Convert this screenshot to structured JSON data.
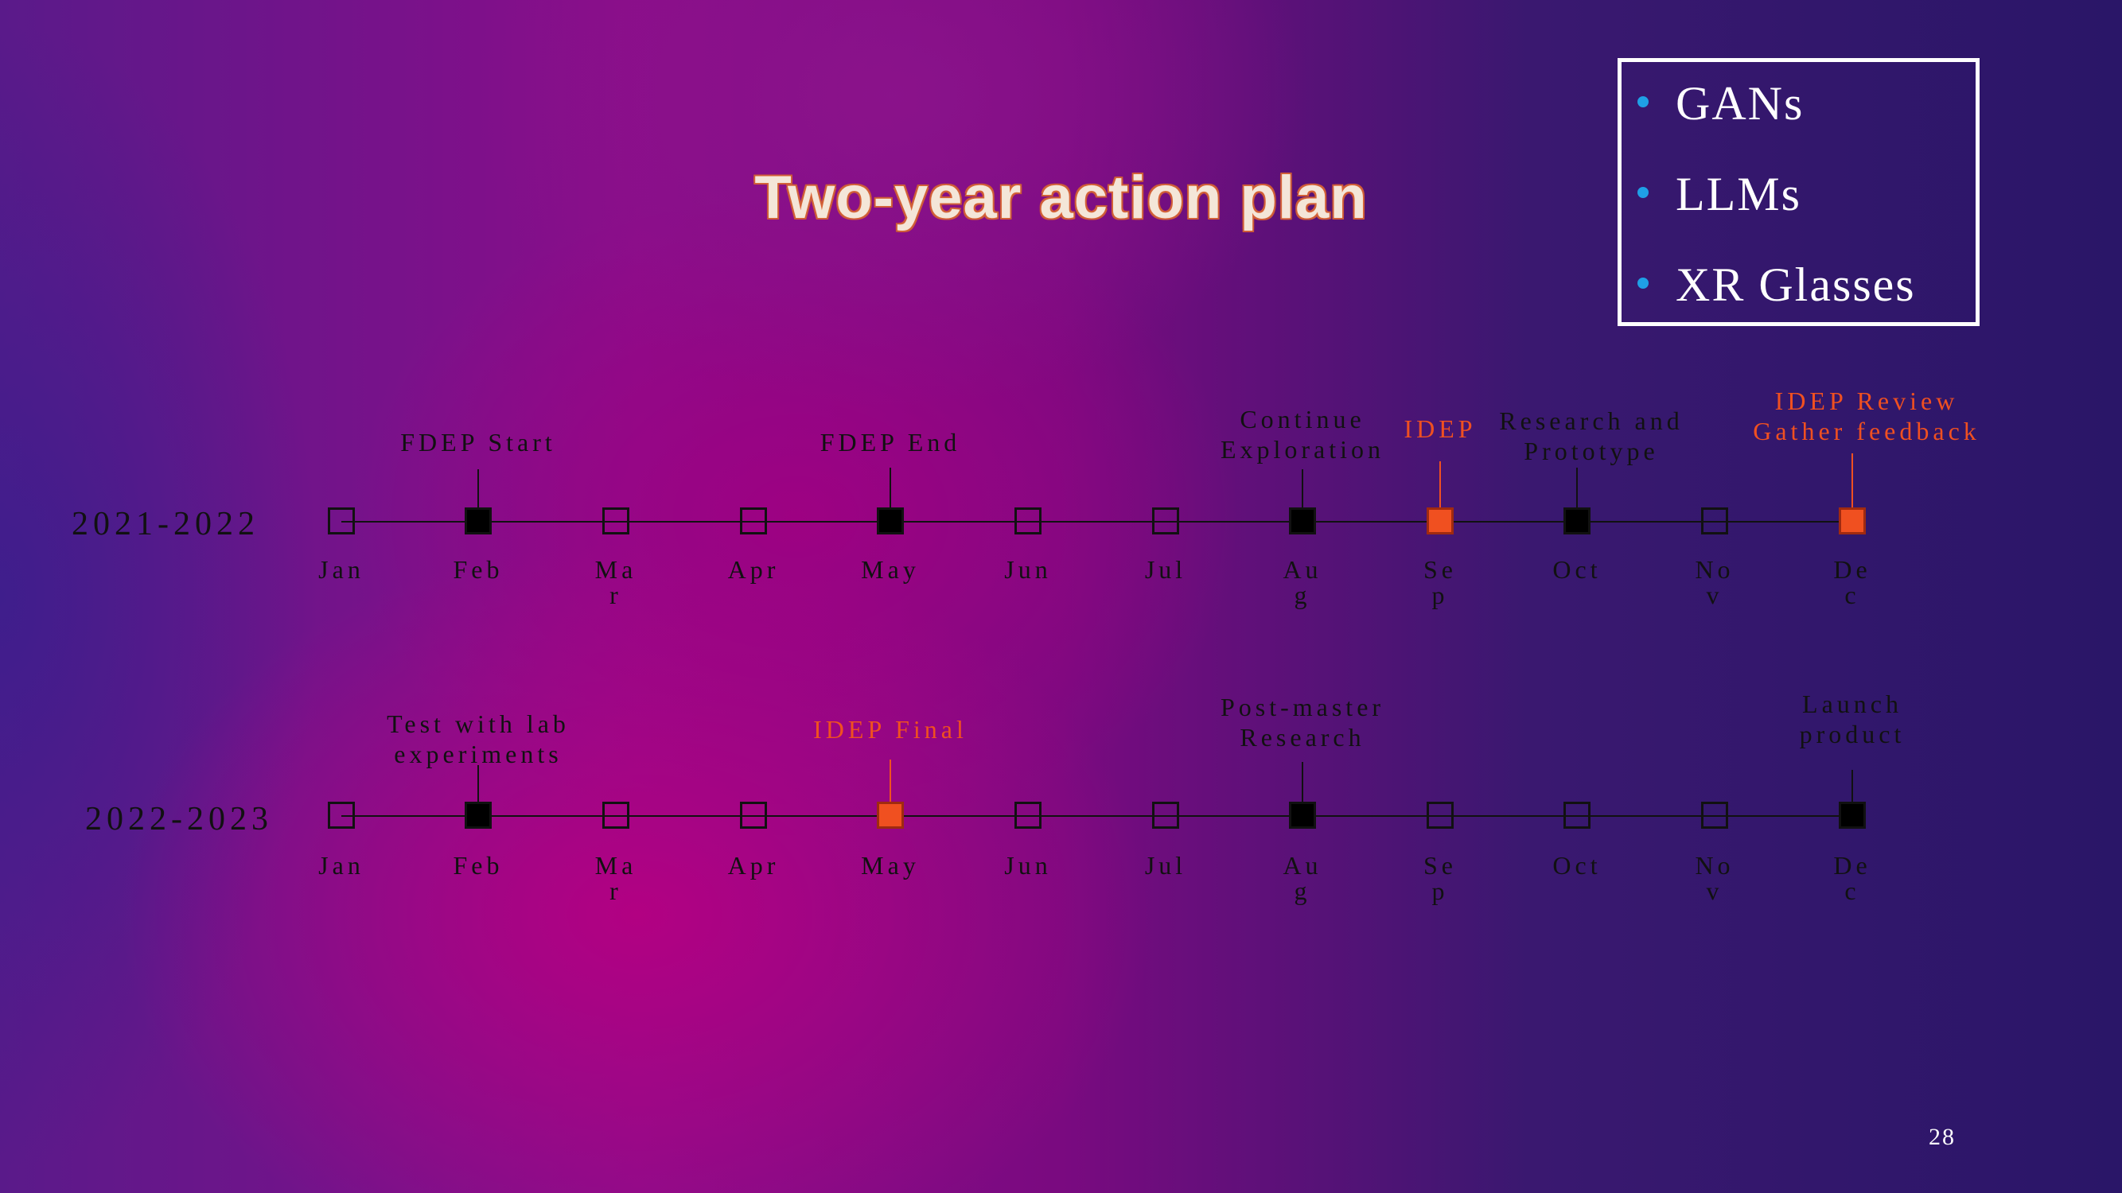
{
  "title": "Two-year action plan",
  "legend": {
    "items": [
      "GANs",
      "LLMs",
      "XR Glasses"
    ],
    "bullet_color": "#1fa0e6"
  },
  "colors": {
    "milestone": "#000000",
    "idep_highlight": "#f05020",
    "text": "#111111"
  },
  "rows": [
    {
      "label": "2021-2022",
      "months": [
        {
          "top": "Jan",
          "bottom": "",
          "style": "empty"
        },
        {
          "top": "Feb",
          "bottom": "",
          "style": "filled"
        },
        {
          "top": "Ma",
          "bottom": "r",
          "style": "empty"
        },
        {
          "top": "Apr",
          "bottom": "",
          "style": "empty"
        },
        {
          "top": "May",
          "bottom": "",
          "style": "filled"
        },
        {
          "top": "Jun",
          "bottom": "",
          "style": "empty"
        },
        {
          "top": "Jul",
          "bottom": "",
          "style": "empty"
        },
        {
          "top": "Au",
          "bottom": "g",
          "style": "filled"
        },
        {
          "top": "Se",
          "bottom": "p",
          "style": "orange"
        },
        {
          "top": "Oct",
          "bottom": "",
          "style": "filled"
        },
        {
          "top": "No",
          "bottom": "v",
          "style": "empty"
        },
        {
          "top": "De",
          "bottom": "c",
          "style": "orange"
        }
      ],
      "milestones": [
        {
          "month_index": 1,
          "lines": [
            "FDEP Start"
          ],
          "orange": false
        },
        {
          "month_index": 4,
          "lines": [
            "FDEP End"
          ],
          "orange": false
        },
        {
          "month_index": 7,
          "lines": [
            "Continue",
            "Exploration"
          ],
          "orange": false
        },
        {
          "month_index": 8,
          "lines": [
            "IDEP"
          ],
          "orange": true
        },
        {
          "month_index": 9,
          "lines": [
            "Research and",
            "Prototype"
          ],
          "orange": false
        },
        {
          "month_index": 11,
          "lines": [
            "IDEP Review",
            "Gather feedback"
          ],
          "orange": true
        }
      ]
    },
    {
      "label": "2022-2023",
      "months": [
        {
          "top": "Jan",
          "bottom": "",
          "style": "empty"
        },
        {
          "top": "Feb",
          "bottom": "",
          "style": "filled"
        },
        {
          "top": "Ma",
          "bottom": "r",
          "style": "empty"
        },
        {
          "top": "Apr",
          "bottom": "",
          "style": "empty"
        },
        {
          "top": "May",
          "bottom": "",
          "style": "orange"
        },
        {
          "top": "Jun",
          "bottom": "",
          "style": "empty"
        },
        {
          "top": "Jul",
          "bottom": "",
          "style": "empty"
        },
        {
          "top": "Au",
          "bottom": "g",
          "style": "filled"
        },
        {
          "top": "Se",
          "bottom": "p",
          "style": "empty"
        },
        {
          "top": "Oct",
          "bottom": "",
          "style": "empty"
        },
        {
          "top": "No",
          "bottom": "v",
          "style": "empty"
        },
        {
          "top": "De",
          "bottom": "c",
          "style": "filled"
        }
      ],
      "milestones": [
        {
          "month_index": 1,
          "lines": [
            "Test with lab",
            "experiments"
          ],
          "orange": false
        },
        {
          "month_index": 4,
          "lines": [
            "IDEP Final"
          ],
          "orange": true
        },
        {
          "month_index": 7,
          "lines": [
            "Post-master",
            "Research"
          ],
          "orange": false
        },
        {
          "month_index": 11,
          "lines": [
            "Launch",
            "product"
          ],
          "orange": false
        }
      ]
    }
  ],
  "page_number": "28"
}
